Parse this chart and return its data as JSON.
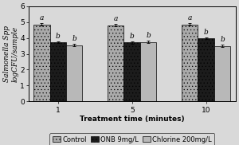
{
  "groups": [
    "1",
    "5",
    "10"
  ],
  "series": {
    "Control": {
      "values": [
        4.85,
        4.8,
        4.85
      ],
      "errors": [
        0.06,
        0.06,
        0.06
      ],
      "color": "#aaaaaa",
      "hatch": "....",
      "label": "Control"
    },
    "ONB": {
      "values": [
        3.75,
        3.72,
        4.0
      ],
      "errors": [
        0.05,
        0.07,
        0.05
      ],
      "color": "#1c1c1c",
      "hatch": "....",
      "label": "ONB 9mg/L"
    },
    "Chlorine": {
      "values": [
        3.55,
        3.75,
        3.5
      ],
      "errors": [
        0.07,
        0.06,
        0.07
      ],
      "color": "#b8b8b8",
      "hatch": "",
      "label": "Chlorine 200mg/L"
    }
  },
  "xlabel": "Treatment time (minutes)",
  "ylabel": "Salmonella Spp\nlogCFU/sample",
  "ylim": [
    0,
    6
  ],
  "yticks": [
    0,
    1,
    2,
    3,
    4,
    5,
    6
  ],
  "sig_labels_by_group": [
    [
      "a",
      "b",
      "b"
    ],
    [
      "a",
      "b",
      "b"
    ],
    [
      "a",
      "b",
      "b"
    ]
  ],
  "background_color": "#d9d9d9",
  "axis_fontsize": 6.5,
  "tick_fontsize": 6.5,
  "legend_fontsize": 6,
  "sig_fontsize": 6.5,
  "bar_width": 0.22
}
